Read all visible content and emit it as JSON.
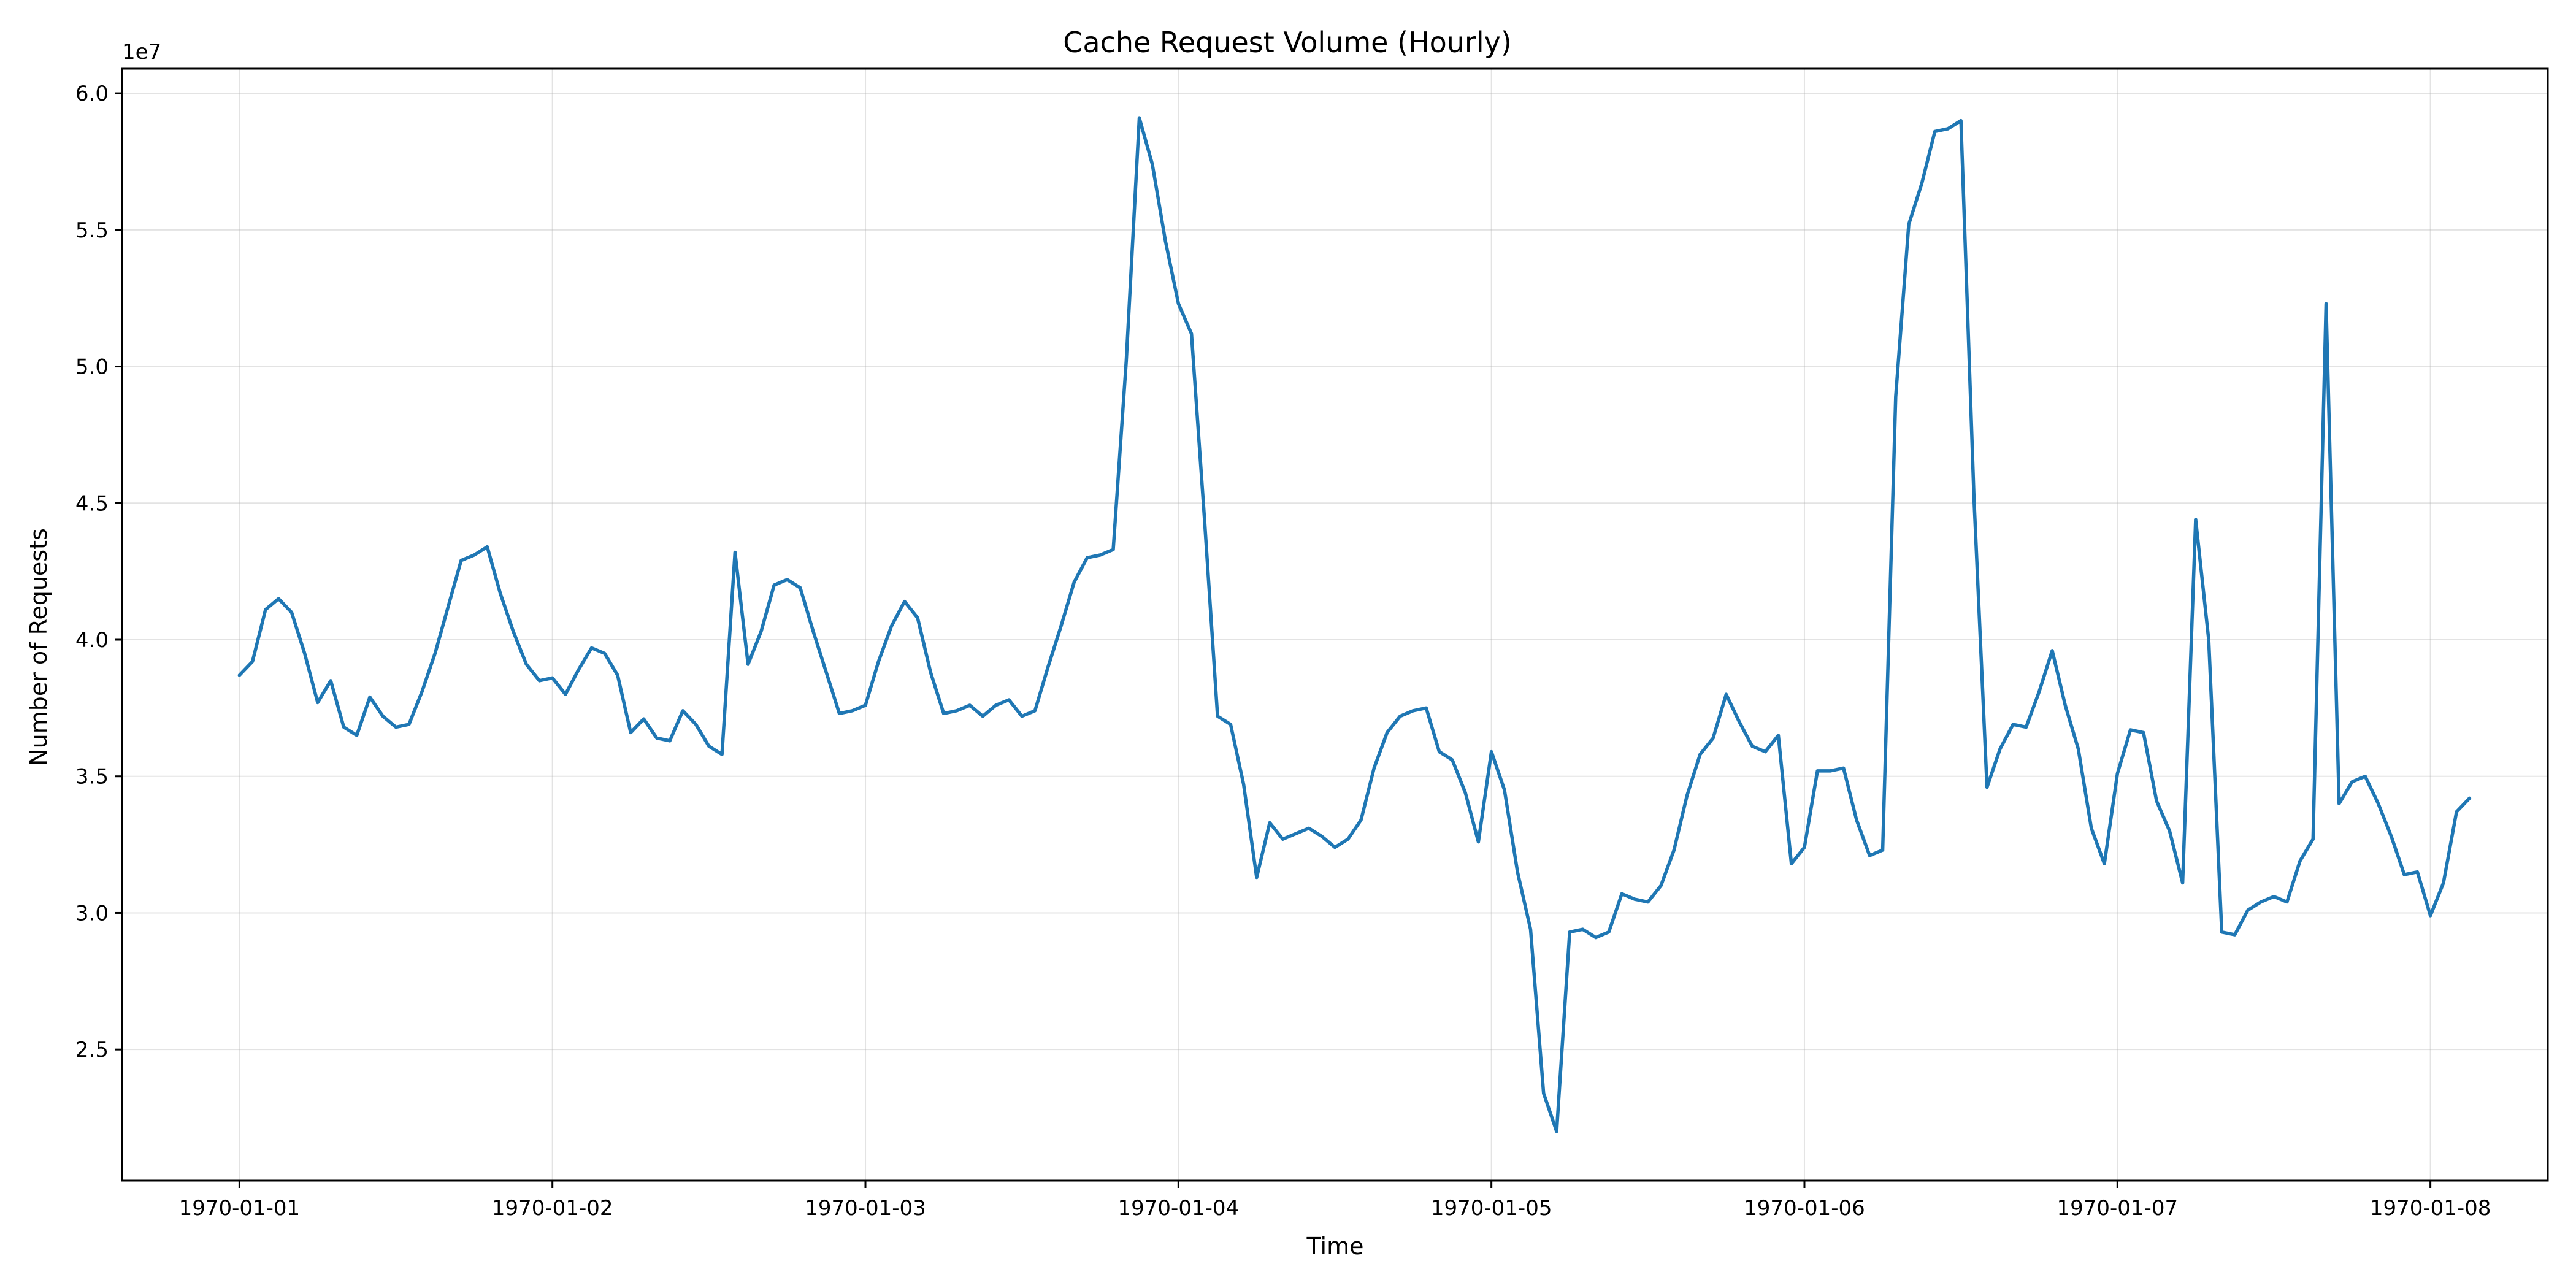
{
  "chart_data": {
    "type": "line",
    "title": "Cache Request Volume (Hourly)",
    "xlabel": "Time",
    "ylabel": "Number of Requests",
    "y_offset_label": "1e7",
    "y_multiplier": 10000000,
    "y_scale": "linear",
    "x_scale": "time",
    "grid": true,
    "legend": "none",
    "ylim": [
      20200000,
      60900000
    ],
    "xlim": [
      "1969-12-31T15:00:00",
      "1970-01-08T09:00:00"
    ],
    "x_start": "1970-01-01T00:00:00",
    "x_step_hours": 1,
    "x_ticks": [
      "1970-01-01",
      "1970-01-02",
      "1970-01-03",
      "1970-01-04",
      "1970-01-05",
      "1970-01-06",
      "1970-01-07",
      "1970-01-08"
    ],
    "y_ticks": [
      "2.5",
      "3.0",
      "3.5",
      "4.0",
      "4.5",
      "5.0",
      "5.5",
      "6.0"
    ],
    "y_tick_values": [
      25000000,
      30000000,
      35000000,
      40000000,
      45000000,
      50000000,
      55000000,
      60000000
    ],
    "colors": {
      "series": "#1f77b4"
    },
    "series": [
      {
        "values": [
          38700000,
          39200000,
          41100000,
          41500000,
          41000000,
          39500000,
          37700000,
          38500000,
          36800000,
          36500000,
          37900000,
          37200000,
          36800000,
          36900000,
          38100000,
          39500000,
          41200000,
          42900000,
          43100000,
          43400000,
          41700000,
          40300000,
          39100000,
          38500000,
          38600000,
          38000000,
          38900000,
          39700000,
          39500000,
          38700000,
          36600000,
          37100000,
          36400000,
          36300000,
          37400000,
          36900000,
          36100000,
          35800000,
          43200000,
          39100000,
          40300000,
          42000000,
          42200000,
          41900000,
          40300000,
          38800000,
          37300000,
          37400000,
          37600000,
          39200000,
          40500000,
          41400000,
          40800000,
          38800000,
          37300000,
          37400000,
          37600000,
          37200000,
          37600000,
          37800000,
          37200000,
          37400000,
          39000000,
          40500000,
          42100000,
          43000000,
          43100000,
          43300000,
          50200000,
          59100000,
          57400000,
          54600000,
          52300000,
          51200000,
          44400000,
          37200000,
          36900000,
          34700000,
          31300000,
          33300000,
          32700000,
          32900000,
          33100000,
          32800000,
          32400000,
          32700000,
          33400000,
          35300000,
          36600000,
          37200000,
          37400000,
          37500000,
          35900000,
          35600000,
          34400000,
          32600000,
          35900000,
          34500000,
          31500000,
          29400000,
          23400000,
          22000000,
          29300000,
          29400000,
          29100000,
          29300000,
          30700000,
          30500000,
          30400000,
          31000000,
          32300000,
          34300000,
          35800000,
          36400000,
          38000000,
          37000000,
          36100000,
          35900000,
          36500000,
          31800000,
          32400000,
          35200000,
          35200000,
          35300000,
          33400000,
          32100000,
          32300000,
          48900000,
          55200000,
          56700000,
          58600000,
          58700000,
          59000000,
          45200000,
          34600000,
          36000000,
          36900000,
          36800000,
          38100000,
          39600000,
          37600000,
          36000000,
          33100000,
          31800000,
          35100000,
          36700000,
          36600000,
          34100000,
          33000000,
          31100000,
          44400000,
          40000000,
          29300000,
          29200000,
          30100000,
          30400000,
          30600000,
          30400000,
          31900000,
          32700000,
          52300000,
          34000000,
          34800000,
          35000000,
          34000000,
          32800000,
          31400000,
          31500000,
          29900000,
          31100000,
          33700000,
          34200000
        ]
      }
    ]
  }
}
